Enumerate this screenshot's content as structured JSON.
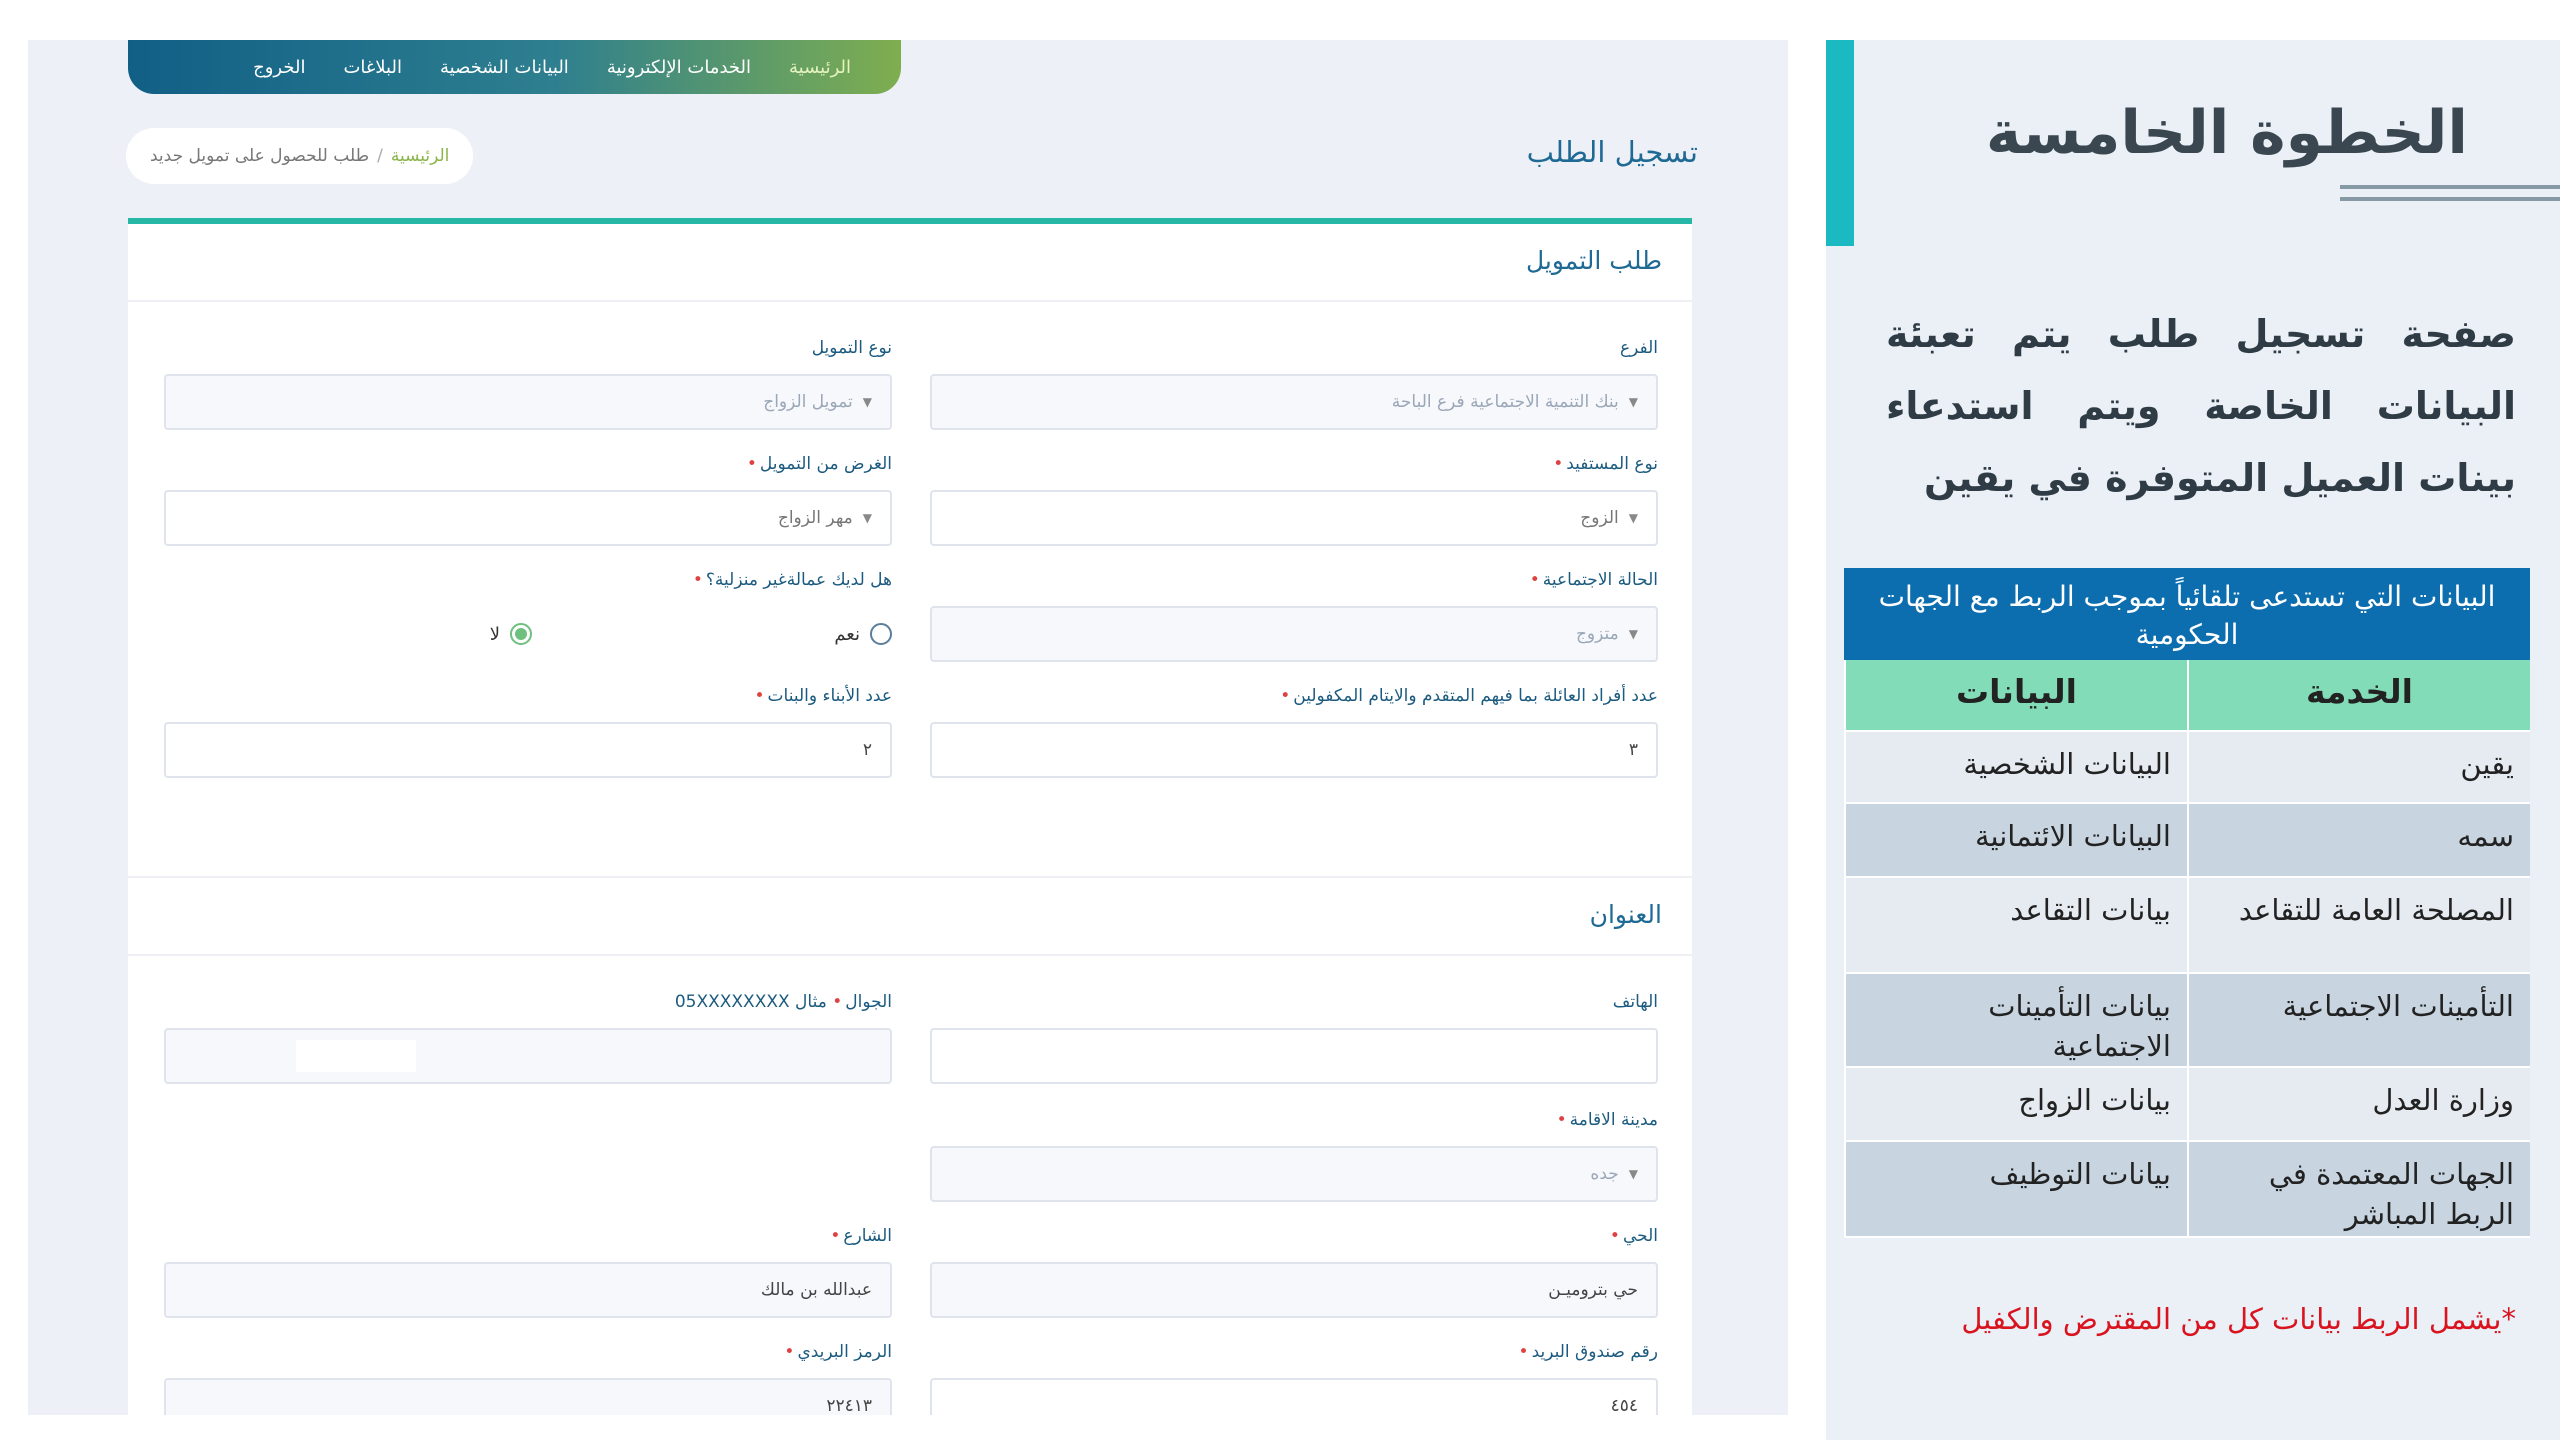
{
  "form_screenshot": {
    "nav": {
      "items": [
        "الرئيسية",
        "الخدمات الإلكترونية",
        "البيانات الشخصية",
        "البلاغات",
        "الخروج"
      ]
    },
    "page_title": "تسجيل الطلب",
    "breadcrumb": {
      "home": "الرئيسية",
      "separator": "/",
      "current": "طلب للحصول على تمويل جديد"
    },
    "sections": {
      "financing": {
        "title": "طلب التمويل"
      },
      "address": {
        "title": "العنوان"
      }
    },
    "fields": {
      "branch": {
        "label": "الفرع",
        "value": "بنك التنمية الاجتماعية فرع الباحة"
      },
      "financing_type": {
        "label": "نوع التمويل",
        "value": "تمويل الزواج"
      },
      "beneficiary_type": {
        "label": "نوع المستفيد",
        "value": "الزوج"
      },
      "financing_purpose": {
        "label": "الغرض من التمويل",
        "value": "مهر الزواج"
      },
      "marital_status": {
        "label": "الحالة الاجتماعية",
        "value": "متزوج"
      },
      "domestic_workers": {
        "label": "هل لديك عمالةغير منزلية؟",
        "option_yes": "نعم",
        "option_no": "لا",
        "selected": "لا"
      },
      "family_members": {
        "label": "عدد أفراد العائلة بما فيهم المتقدم والايتام المكفولين",
        "value": "٣"
      },
      "children_count": {
        "label": "عدد الأبناء والبنات",
        "value": "٢"
      },
      "phone": {
        "label": "الهاتف",
        "value": ""
      },
      "mobile": {
        "label": "الجوال",
        "hint": "مثال 05XXXXXXXX",
        "value": ""
      },
      "city": {
        "label": "مدينة الاقامة",
        "value": "جده"
      },
      "district": {
        "label": "الحي",
        "value": "حي بتروميـن"
      },
      "street": {
        "label": "الشارع",
        "value": "عبدالله بن مالك"
      },
      "po_box": {
        "label": "رقم صندوق البريد",
        "value": "٤٥٤"
      },
      "postal_code": {
        "label": "الرمز البريدي",
        "value": "٢٢٤١٣"
      }
    }
  },
  "panel": {
    "step_title": "الخطوة الخامسة",
    "intro": "صفحة تسجيل طلب يتم تعبئة البيانات الخاصة ويتم استدعاء بينات العميل المتوفرة في يقين",
    "table": {
      "caption": "البيانات التي تستدعى تلقائياً بموجب الربط مع الجهات الحكومية",
      "headers": {
        "service": "الخدمة",
        "data": "البيانات"
      },
      "rows": [
        {
          "service": "يقين",
          "data": "البيانات الشخصية"
        },
        {
          "service": "سمه",
          "data": "البيانات الائتمانية"
        },
        {
          "service": "المصلحة العامة للتقاعد",
          "data": "بيانات التقاعد"
        },
        {
          "service": "التأمينات الاجتماعية",
          "data": "بيانات التأمينات الاجتماعية"
        },
        {
          "service": "وزارة العدل",
          "data": "بيانات الزواج"
        },
        {
          "service": "الجهات المعتمدة في الربط المباشر",
          "data": "بيانات التوظيف"
        }
      ]
    },
    "footnote": "*يشمل الربط بيانات كل من المقترض والكفيل"
  },
  "colors": {
    "accent_teal": "#1bbac2",
    "caption_blue": "#0c6daf",
    "header_green": "#82dcb8",
    "footnote_red": "#d9141f",
    "form_title_blue": "#1f6a94"
  }
}
